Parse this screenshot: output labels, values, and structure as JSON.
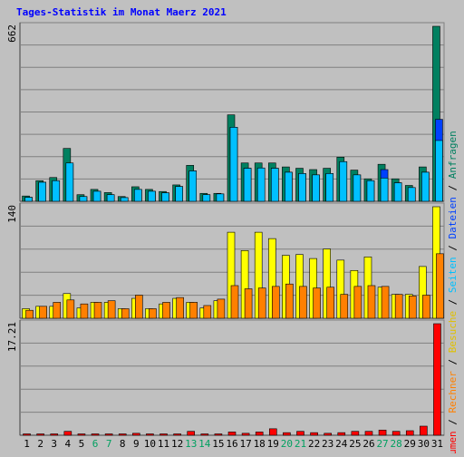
{
  "chart_data": {
    "type": "bar",
    "title": "Tages-Statistik im Monat Maerz 2021",
    "categories": [
      "1",
      "2",
      "3",
      "4",
      "5",
      "6",
      "7",
      "8",
      "9",
      "10",
      "11",
      "12",
      "13",
      "14",
      "15",
      "16",
      "17",
      "18",
      "19",
      "20",
      "21",
      "22",
      "23",
      "24",
      "25",
      "26",
      "27",
      "28",
      "29",
      "30",
      "31"
    ],
    "weekend_days": [
      "6",
      "7",
      "13",
      "14",
      "20",
      "21",
      "27",
      "28"
    ],
    "panels": [
      {
        "id": "top",
        "ymax_label": "662",
        "ylim": [
          0,
          662
        ],
        "series": [
          {
            "name": "Anfragen",
            "color": "#008060",
            "values": [
              20,
              78,
              90,
              200,
              25,
              45,
              33,
              18,
              55,
              45,
              37,
              62,
              136,
              30,
              30,
              327,
              145,
              145,
              145,
              130,
              125,
              120,
              125,
              167,
              118,
              85,
              140,
              85,
              60,
              130,
              662
            ]
          },
          {
            "name": "Dateien",
            "color": "#0040ff",
            "values": [
              15,
              72,
              78,
              140,
              18,
              38,
              25,
              14,
              45,
              38,
              32,
              56,
              115,
              25,
              28,
              280,
              125,
              126,
              125,
              110,
              105,
              100,
              105,
              150,
              100,
              78,
              120,
              70,
              52,
              110,
              310
            ]
          },
          {
            "name": "Seiten",
            "color": "#00c0ff",
            "values": [
              15,
              72,
              78,
              145,
              18,
              38,
              25,
              14,
              45,
              38,
              32,
              56,
              115,
              25,
              28,
              280,
              125,
              126,
              125,
              110,
              105,
              100,
              105,
              150,
              100,
              78,
              88,
              70,
              52,
              110,
              230
            ]
          }
        ]
      },
      {
        "id": "middle",
        "ymax_label": "140",
        "ylim": [
          0,
          140
        ],
        "series": [
          {
            "name": "Besuche",
            "color": "#ffff00",
            "values": [
              12,
              15,
              15,
              31,
              13,
              20,
              20,
              12,
              25,
              12,
              18,
              25,
              20,
              13,
              22,
              108,
              85,
              108,
              100,
              79,
              80,
              75,
              87,
              73,
              60,
              77,
              39,
              30,
              30,
              65,
              140
            ]
          },
          {
            "name": "Rechner",
            "color": "#ff8000",
            "values": [
              10,
              15,
              20,
              23,
              18,
              20,
              22,
              12,
              29,
              12,
              20,
              26,
              20,
              16,
              24,
              41,
              37,
              38,
              40,
              43,
              40,
              38,
              39,
              30,
              40,
              41,
              40,
              30,
              28,
              29,
              81
            ]
          }
        ]
      },
      {
        "id": "bottom",
        "ymax_label": "17.21",
        "ylim": [
          0,
          17.21
        ],
        "series": [
          {
            "name": "Volumen",
            "color": "#ff0000",
            "values": [
              0.2,
              0.2,
              0.2,
              0.6,
              0.2,
              0.2,
              0.2,
              0.2,
              0.3,
              0.2,
              0.2,
              0.2,
              0.6,
              0.2,
              0.2,
              0.5,
              0.3,
              0.5,
              1.0,
              0.4,
              0.6,
              0.4,
              0.3,
              0.4,
              0.6,
              0.6,
              0.8,
              0.6,
              0.7,
              1.4,
              17.21
            ]
          }
        ]
      }
    ],
    "legend": [
      {
        "name": "Volumen",
        "color": "#ff0000"
      },
      {
        "name": "Rechner",
        "color": "#ff8000"
      },
      {
        "name": "Besuche",
        "color": "#ffff00"
      },
      {
        "name": "Seiten",
        "color": "#00c0ff"
      },
      {
        "name": "Dateien",
        "color": "#0040ff"
      },
      {
        "name": "Anfragen",
        "color": "#008060"
      }
    ],
    "legend_separator": "/",
    "colors": {
      "background": "#c0c0c0",
      "title": "#0000ff",
      "weekday_label": "#000000",
      "weekend_label": "#00a060",
      "grid": "#808080"
    },
    "grid": true,
    "legend_position": "right-vertical"
  }
}
